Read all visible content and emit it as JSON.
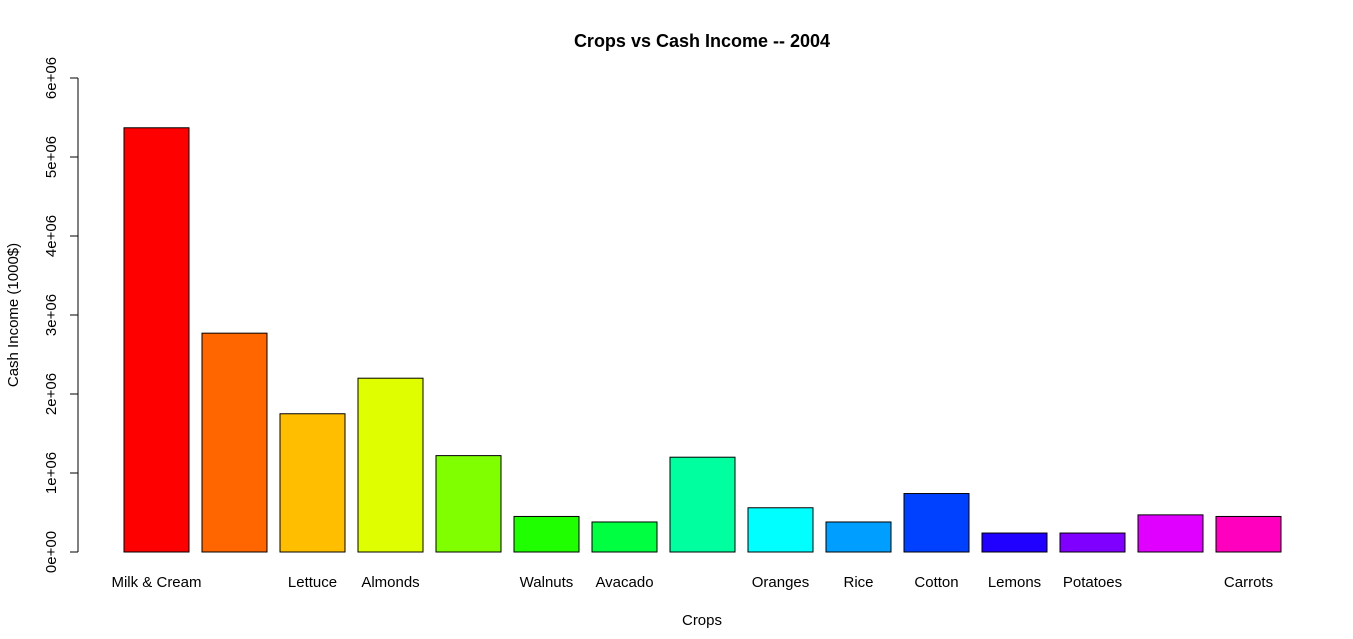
{
  "chart_data": {
    "type": "bar",
    "title": "Crops vs Cash Income -- 2004",
    "xlabel": "Crops",
    "ylabel": "Cash Income (1000$)",
    "ylim": [
      0,
      6000000
    ],
    "yticks": [
      0,
      1000000,
      2000000,
      3000000,
      4000000,
      5000000,
      6000000
    ],
    "ytick_labels": [
      "0e+00",
      "1e+06",
      "2e+06",
      "3e+06",
      "4e+06",
      "5e+06",
      "6e+06"
    ],
    "grid": false,
    "categories": [
      "Milk & Cream",
      "",
      "Lettuce",
      "Almonds",
      "",
      "Walnuts",
      "Avacado",
      "",
      "Oranges",
      "Rice",
      "Cotton",
      "Lemons",
      "Potatoes",
      "",
      "Carrots"
    ],
    "values": [
      5370000,
      2770000,
      1750000,
      2200000,
      1220000,
      450000,
      380000,
      1200000,
      560000,
      380000,
      740000,
      240000,
      240000,
      470000,
      450000
    ],
    "colors": [
      "#FF0000",
      "#FF6600",
      "#FFBF00",
      "#DFFF00",
      "#80FF00",
      "#20FF00",
      "#00FF40",
      "#00FF9F",
      "#00FFFF",
      "#009FFF",
      "#0040FF",
      "#2000FF",
      "#8000FF",
      "#DF00FF",
      "#FF00BF"
    ]
  }
}
